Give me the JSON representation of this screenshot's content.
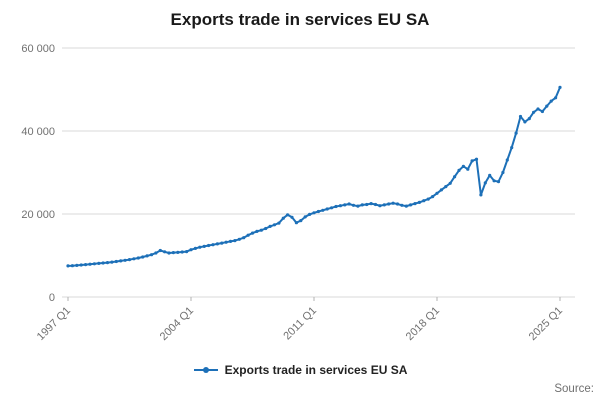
{
  "chart_data": {
    "type": "line",
    "title": "Exports trade in services EU SA",
    "legend_position": "bottom",
    "grid": "horizontal",
    "source_label": "Source:",
    "x_unit": "quarter",
    "x_range": [
      "1997 Q1",
      "2025 Q1"
    ],
    "ylim": [
      0,
      60000
    ],
    "y_ticks": [
      {
        "value": 0,
        "label": "0"
      },
      {
        "value": 20000,
        "label": "20 000"
      },
      {
        "value": 40000,
        "label": "40 000"
      },
      {
        "value": 60000,
        "label": "60 000"
      }
    ],
    "x_ticks": [
      {
        "index": 0,
        "label": "1997 Q1"
      },
      {
        "index": 28,
        "label": "2004 Q1"
      },
      {
        "index": 56,
        "label": "2011 Q1"
      },
      {
        "index": 84,
        "label": "2018 Q1"
      },
      {
        "index": 112,
        "label": "2025 Q1"
      }
    ],
    "colors": {
      "line": "#1d70b8",
      "grid": "#d8d8d8",
      "axis_text": "#707070",
      "tick": "#b3b3b3",
      "title_text": "#1a1a1a",
      "legend_text": "#222222"
    },
    "series": [
      {
        "name": "Exports trade in services EU SA",
        "color": "#1d70b8",
        "values": [
          7500,
          7550,
          7620,
          7700,
          7800,
          7900,
          8000,
          8100,
          8200,
          8300,
          8400,
          8550,
          8700,
          8850,
          9000,
          9200,
          9400,
          9650,
          9900,
          10200,
          10600,
          11200,
          10900,
          10600,
          10700,
          10750,
          10850,
          10950,
          11400,
          11700,
          12000,
          12200,
          12400,
          12600,
          12800,
          13000,
          13200,
          13400,
          13600,
          13900,
          14300,
          14900,
          15400,
          15800,
          16100,
          16500,
          17000,
          17400,
          17800,
          19000,
          19800,
          19200,
          17900,
          18400,
          19300,
          19900,
          20300,
          20600,
          20900,
          21200,
          21500,
          21800,
          22000,
          22200,
          22400,
          22100,
          21900,
          22200,
          22300,
          22500,
          22300,
          22000,
          22200,
          22400,
          22600,
          22400,
          22100,
          21900,
          22200,
          22500,
          22800,
          23200,
          23600,
          24200,
          25000,
          25800,
          26600,
          27400,
          29000,
          30500,
          31500,
          30800,
          32800,
          33200,
          24600,
          27500,
          29300,
          28000,
          27800,
          30000,
          33000,
          36000,
          39500,
          43500,
          42200,
          43000,
          44500,
          45300,
          44700,
          46000,
          47200,
          48000,
          50500
        ]
      }
    ]
  }
}
